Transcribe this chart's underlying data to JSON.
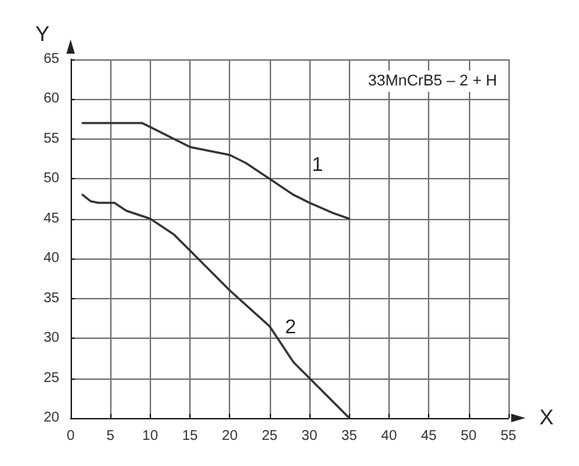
{
  "chart_data": {
    "type": "line",
    "xlabel": "X",
    "ylabel": "Y",
    "xlim": [
      0,
      55
    ],
    "xticks": [
      0,
      5,
      10,
      15,
      20,
      25,
      30,
      35,
      40,
      45,
      50,
      55
    ],
    "ylim": [
      20,
      65
    ],
    "yticks": [
      20,
      25,
      30,
      35,
      40,
      45,
      50,
      55,
      60,
      65
    ],
    "grid": true,
    "marker": "none",
    "line_style": "solid",
    "annotations": [
      "33MnCrB5 – 2 + H"
    ],
    "series": [
      {
        "name": "1",
        "color": "#333333",
        "x": [
          1.5,
          5,
          9,
          10,
          13,
          15,
          20,
          22,
          25,
          28,
          30,
          33,
          35
        ],
        "values": [
          57,
          57,
          57,
          56.5,
          55,
          54,
          53,
          52,
          50,
          48,
          47,
          45.7,
          45
        ]
      },
      {
        "name": "2",
        "color": "#333333",
        "x": [
          1.5,
          2.5,
          3.5,
          5.5,
          7,
          10,
          13,
          15,
          17,
          20,
          25,
          28,
          30,
          33,
          35
        ],
        "values": [
          48,
          47.2,
          47,
          47,
          46,
          45,
          43,
          41,
          39,
          36,
          31.5,
          27,
          25,
          22,
          20
        ]
      }
    ]
  }
}
